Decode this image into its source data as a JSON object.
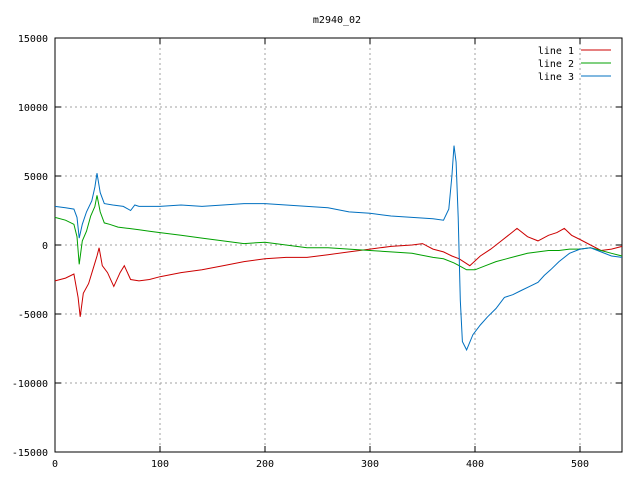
{
  "chart_data": {
    "type": "line",
    "title": "m2940_02",
    "xlabel": "",
    "ylabel": "",
    "xlim": [
      0,
      540
    ],
    "ylim": [
      -15000,
      15000
    ],
    "grid": true,
    "legend_position": "top-right",
    "x_ticks": [
      "0",
      "100",
      "200",
      "300",
      "400",
      "500"
    ],
    "y_ticks": [
      "15000",
      "10000",
      "5000",
      "0",
      "-5000",
      "-10000",
      "-15000"
    ],
    "series": [
      {
        "name": "line 1",
        "color": "#cc0000",
        "points": [
          [
            0,
            -2600
          ],
          [
            10,
            -2400
          ],
          [
            18,
            -2100
          ],
          [
            22,
            -3800
          ],
          [
            24,
            -5200
          ],
          [
            27,
            -3500
          ],
          [
            32,
            -2800
          ],
          [
            36,
            -1800
          ],
          [
            40,
            -800
          ],
          [
            42,
            -200
          ],
          [
            45,
            -1500
          ],
          [
            50,
            -2000
          ],
          [
            56,
            -3000
          ],
          [
            62,
            -2000
          ],
          [
            66,
            -1500
          ],
          [
            72,
            -2500
          ],
          [
            80,
            -2600
          ],
          [
            90,
            -2500
          ],
          [
            100,
            -2300
          ],
          [
            120,
            -2000
          ],
          [
            140,
            -1800
          ],
          [
            160,
            -1500
          ],
          [
            180,
            -1200
          ],
          [
            200,
            -1000
          ],
          [
            220,
            -900
          ],
          [
            240,
            -900
          ],
          [
            260,
            -700
          ],
          [
            280,
            -500
          ],
          [
            300,
            -300
          ],
          [
            320,
            -100
          ],
          [
            340,
            0
          ],
          [
            350,
            100
          ],
          [
            360,
            -300
          ],
          [
            370,
            -500
          ],
          [
            378,
            -800
          ],
          [
            385,
            -1000
          ],
          [
            395,
            -1500
          ],
          [
            405,
            -800
          ],
          [
            415,
            -300
          ],
          [
            425,
            300
          ],
          [
            435,
            900
          ],
          [
            440,
            1200
          ],
          [
            450,
            600
          ],
          [
            460,
            300
          ],
          [
            470,
            700
          ],
          [
            478,
            900
          ],
          [
            485,
            1200
          ],
          [
            492,
            700
          ],
          [
            500,
            400
          ],
          [
            510,
            0
          ],
          [
            520,
            -400
          ],
          [
            530,
            -300
          ],
          [
            540,
            -100
          ]
        ]
      },
      {
        "name": "line 2",
        "color": "#00a000",
        "points": [
          [
            0,
            2000
          ],
          [
            10,
            1800
          ],
          [
            18,
            1500
          ],
          [
            21,
            600
          ],
          [
            23,
            -1400
          ],
          [
            26,
            300
          ],
          [
            30,
            1000
          ],
          [
            34,
            2100
          ],
          [
            38,
            2800
          ],
          [
            40,
            3600
          ],
          [
            43,
            2400
          ],
          [
            47,
            1600
          ],
          [
            52,
            1500
          ],
          [
            60,
            1300
          ],
          [
            70,
            1200
          ],
          [
            80,
            1100
          ],
          [
            90,
            1000
          ],
          [
            100,
            900
          ],
          [
            120,
            700
          ],
          [
            140,
            500
          ],
          [
            160,
            300
          ],
          [
            180,
            100
          ],
          [
            200,
            200
          ],
          [
            220,
            0
          ],
          [
            240,
            -200
          ],
          [
            260,
            -200
          ],
          [
            280,
            -300
          ],
          [
            300,
            -400
          ],
          [
            320,
            -500
          ],
          [
            340,
            -600
          ],
          [
            360,
            -900
          ],
          [
            370,
            -1000
          ],
          [
            380,
            -1300
          ],
          [
            385,
            -1500
          ],
          [
            392,
            -1800
          ],
          [
            400,
            -1800
          ],
          [
            410,
            -1500
          ],
          [
            420,
            -1200
          ],
          [
            430,
            -1000
          ],
          [
            440,
            -800
          ],
          [
            450,
            -600
          ],
          [
            460,
            -500
          ],
          [
            470,
            -400
          ],
          [
            480,
            -400
          ],
          [
            490,
            -300
          ],
          [
            500,
            -300
          ],
          [
            510,
            -200
          ],
          [
            520,
            -400
          ],
          [
            530,
            -600
          ],
          [
            540,
            -800
          ]
        ]
      },
      {
        "name": "line 3",
        "color": "#0070c0",
        "points": [
          [
            0,
            2800
          ],
          [
            10,
            2700
          ],
          [
            18,
            2600
          ],
          [
            21,
            2000
          ],
          [
            23,
            500
          ],
          [
            26,
            1500
          ],
          [
            30,
            2400
          ],
          [
            35,
            3200
          ],
          [
            38,
            4200
          ],
          [
            40,
            5200
          ],
          [
            43,
            3800
          ],
          [
            47,
            3000
          ],
          [
            55,
            2900
          ],
          [
            65,
            2800
          ],
          [
            72,
            2500
          ],
          [
            76,
            2900
          ],
          [
            80,
            2800
          ],
          [
            100,
            2800
          ],
          [
            120,
            2900
          ],
          [
            140,
            2800
          ],
          [
            160,
            2900
          ],
          [
            180,
            3000
          ],
          [
            200,
            3000
          ],
          [
            220,
            2900
          ],
          [
            240,
            2800
          ],
          [
            260,
            2700
          ],
          [
            280,
            2400
          ],
          [
            300,
            2300
          ],
          [
            320,
            2100
          ],
          [
            340,
            2000
          ],
          [
            360,
            1900
          ],
          [
            370,
            1800
          ],
          [
            375,
            2600
          ],
          [
            378,
            5000
          ],
          [
            380,
            7200
          ],
          [
            382,
            6000
          ],
          [
            384,
            2000
          ],
          [
            386,
            -4000
          ],
          [
            388,
            -7000
          ],
          [
            392,
            -7600
          ],
          [
            398,
            -6500
          ],
          [
            405,
            -5800
          ],
          [
            412,
            -5200
          ],
          [
            420,
            -4600
          ],
          [
            428,
            -3800
          ],
          [
            436,
            -3600
          ],
          [
            444,
            -3300
          ],
          [
            452,
            -3000
          ],
          [
            460,
            -2700
          ],
          [
            466,
            -2200
          ],
          [
            472,
            -1800
          ],
          [
            480,
            -1200
          ],
          [
            490,
            -600
          ],
          [
            500,
            -300
          ],
          [
            510,
            -200
          ],
          [
            520,
            -500
          ],
          [
            530,
            -800
          ],
          [
            540,
            -900
          ]
        ]
      }
    ]
  }
}
